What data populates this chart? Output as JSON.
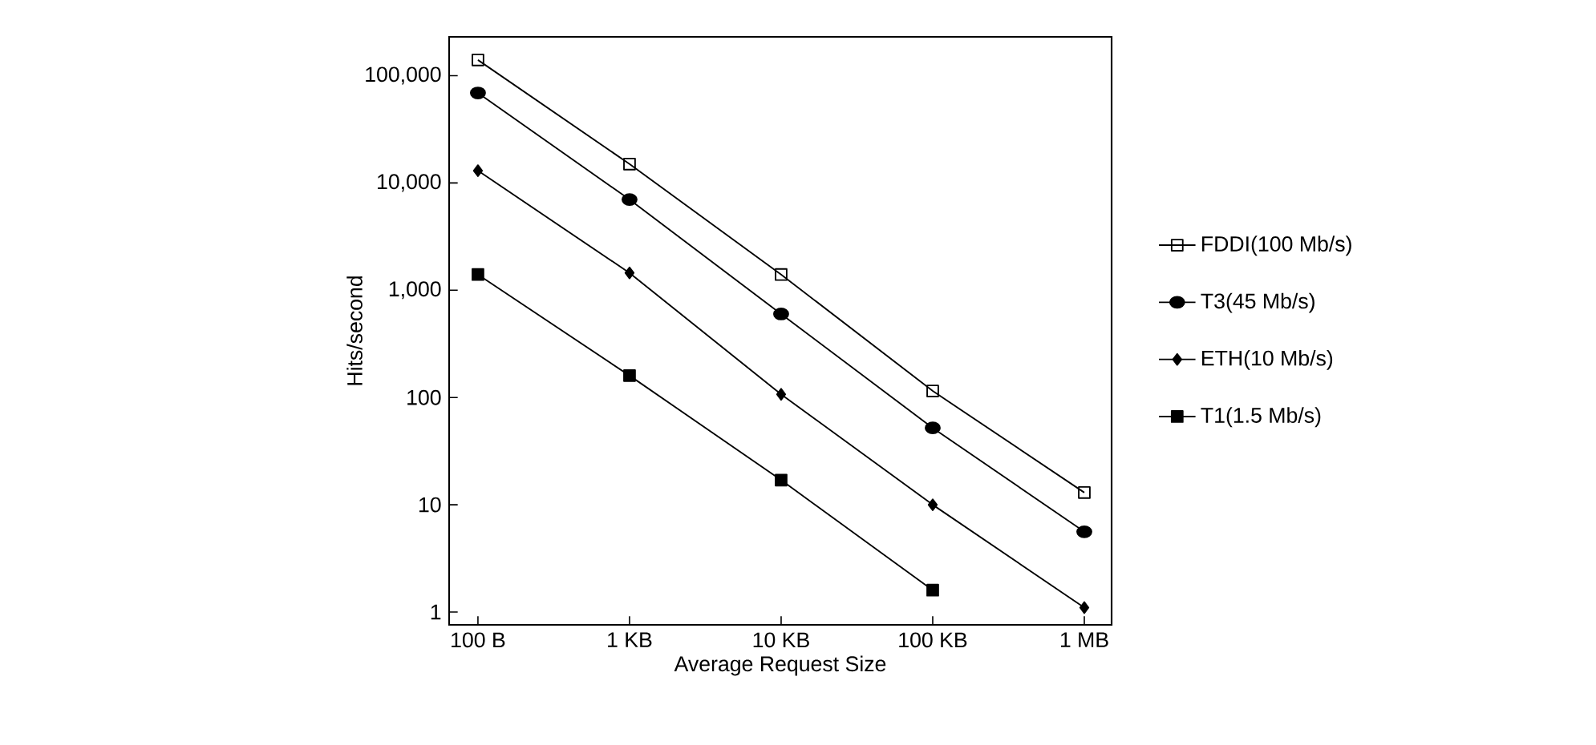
{
  "chart_data": {
    "type": "line",
    "xlabel": "Average Request Size",
    "ylabel": "Hits/second",
    "log": "y",
    "grid": false,
    "legend": "right",
    "categories": [
      "100 B",
      "1 KB",
      "10 KB",
      "100 KB",
      "1 MB"
    ],
    "ylim": [
      0.76,
      230000
    ],
    "yticks": [
      {
        "value": 1,
        "label": "1"
      },
      {
        "value": 10,
        "label": "10"
      },
      {
        "value": 100,
        "label": "100"
      },
      {
        "value": 1000,
        "label": "1,000"
      },
      {
        "value": 10000,
        "label": "10,000"
      },
      {
        "value": 100000,
        "label": "100,000"
      }
    ],
    "series": [
      {
        "name": "FDDI(100 Mb/s)",
        "color": "#000000",
        "marker": "square",
        "values": [
          140000,
          15000,
          1400,
          115,
          13
        ]
      },
      {
        "name": "T3(45 Mb/s)",
        "color": "#000000",
        "marker": "circle",
        "values": [
          69000,
          7000,
          600,
          52,
          5.6
        ]
      },
      {
        "name": "ETH(10 Mb/s)",
        "color": "#000000",
        "marker": "diamond",
        "values": [
          13000,
          1450,
          107,
          10,
          1.1
        ]
      },
      {
        "name": "T1(1.5 Mb/s)",
        "color": "#000000",
        "marker": "square",
        "values": [
          1400,
          160,
          17,
          1.6,
          null
        ]
      }
    ]
  }
}
